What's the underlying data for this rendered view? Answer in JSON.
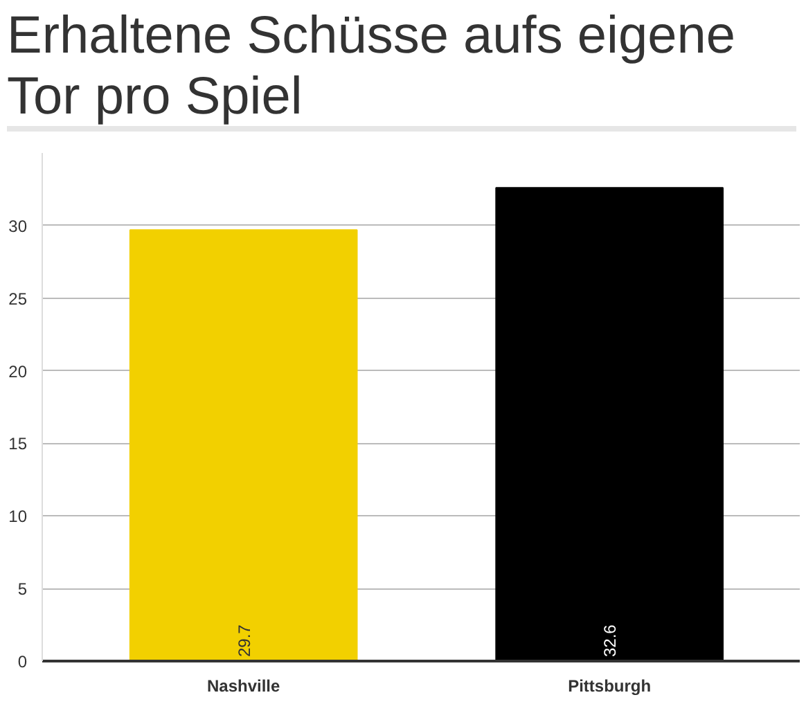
{
  "chart_data": {
    "type": "bar",
    "title": "Erhaltene Schüsse aufs eigene Tor pro Spiel",
    "categories": [
      "Nashville",
      "Pittsburgh"
    ],
    "values": [
      29.7,
      32.6
    ],
    "colors": [
      "#f2d000",
      "#000000"
    ],
    "ylim": [
      0,
      35
    ],
    "yticks": [
      0,
      5,
      10,
      15,
      20,
      25,
      30
    ],
    "grid": "y",
    "data_labels": true
  }
}
